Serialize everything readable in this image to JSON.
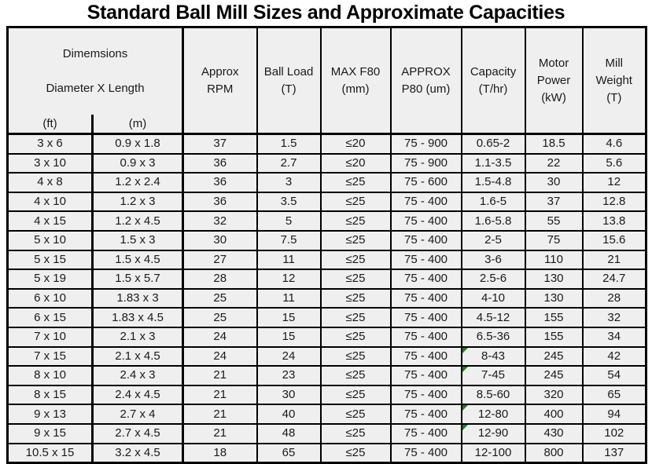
{
  "title": "Standard Ball Mill Sizes and Approximate Capacities",
  "colors": {
    "page_bg": "#ffffff",
    "cell_bg": "#efefef",
    "border": "#000000",
    "text": "#1a1a1a",
    "flag_green": "#1f7d1f"
  },
  "chart_data": {
    "type": "table",
    "title": "Standard Ball Mill Sizes and Approximate Capacities",
    "header": {
      "dimensions_title": "Dimemsions",
      "dimensions_subtitle": "Diameter X Length",
      "unit_labels": [
        "(ft)",
        "(m)"
      ],
      "columns": [
        "Approx\nRPM",
        "Ball Load\n(T)",
        "MAX F80\n(mm)",
        "APPROX\nP80 (um)",
        "Capacity\n(T/hr)",
        "Motor\nPower\n(kW)",
        "Mill\nWeight\n(T)"
      ]
    },
    "rows": [
      {
        "cells": [
          "3 x 6",
          "0.9 x 1.8",
          "37",
          "1.5",
          "≤20",
          "75 - 900",
          "0.65-2",
          "18.5",
          "4.6"
        ]
      },
      {
        "cells": [
          "3 x 10",
          "0.9 x 3",
          "36",
          "2.7",
          "≤20",
          "75 - 900",
          "1.1-3.5",
          "22",
          "5.6"
        ]
      },
      {
        "cells": [
          "4 x 8",
          "1.2 x 2.4",
          "36",
          "3",
          "≤25",
          "75 - 600",
          "1.5-4.8",
          "30",
          "12"
        ]
      },
      {
        "cells": [
          "4 x 10",
          "1.2 x 3",
          "36",
          "3.5",
          "≤25",
          "75 - 400",
          "1.6-5",
          "37",
          "12.8"
        ]
      },
      {
        "cells": [
          "4 x 15",
          "1.2 x 4.5",
          "32",
          "5",
          "≤25",
          "75 - 400",
          "1.6-5.8",
          "55",
          "13.8"
        ]
      },
      {
        "cells": [
          "5 x 10",
          "1.5 x 3",
          "30",
          "7.5",
          "≤25",
          "75 - 400",
          "2-5",
          "75",
          "15.6"
        ]
      },
      {
        "cells": [
          "5 x 15",
          "1.5 x 4.5",
          "27",
          "11",
          "≤25",
          "75 - 400",
          "3-6",
          "110",
          "21"
        ]
      },
      {
        "cells": [
          "5 x 19",
          "1.5 x 5.7",
          "28",
          "12",
          "≤25",
          "75 - 400",
          "2.5-6",
          "130",
          "24.7"
        ]
      },
      {
        "cells": [
          "6 x 10",
          "1.83 x 3",
          "25",
          "11",
          "≤25",
          "75 - 400",
          "4-10",
          "130",
          "28"
        ]
      },
      {
        "cells": [
          "6 x 15",
          "1.83 x 4.5",
          "25",
          "15",
          "≤25",
          "75 - 400",
          "4.5-12",
          "155",
          "32"
        ]
      },
      {
        "cells": [
          "7 x 10",
          "2.1 x 3",
          "24",
          "15",
          "≤25",
          "75 - 400",
          "6.5-36",
          "155",
          "34"
        ]
      },
      {
        "cells": [
          "7 x 15",
          "2.1 x 4.5",
          "24",
          "24",
          "≤25",
          "75 - 400",
          "8-43",
          "245",
          "42"
        ],
        "flag_col": 6
      },
      {
        "cells": [
          "8 x 10",
          "2.4 x 3",
          "21",
          "23",
          "≤25",
          "75 - 400",
          "7-45",
          "245",
          "54"
        ],
        "flag_col": 6
      },
      {
        "cells": [
          "8 x 15",
          "2.4 x 4.5",
          "21",
          "30",
          "≤25",
          "75 - 400",
          "8.5-60",
          "320",
          "65"
        ]
      },
      {
        "cells": [
          "9 x 13",
          "2.7 x 4",
          "21",
          "40",
          "≤25",
          "75 - 400",
          "12-80",
          "400",
          "94"
        ],
        "flag_col": 6
      },
      {
        "cells": [
          "9 x 15",
          "2.7 x 4.5",
          "21",
          "48",
          "≤25",
          "75 - 400",
          "12-90",
          "430",
          "102"
        ],
        "flag_col": 6
      },
      {
        "cells": [
          "10.5 x 15",
          "3.2 x 4.5",
          "18",
          "65",
          "≤25",
          "75 - 400",
          "12-100",
          "800",
          "137"
        ]
      }
    ]
  }
}
